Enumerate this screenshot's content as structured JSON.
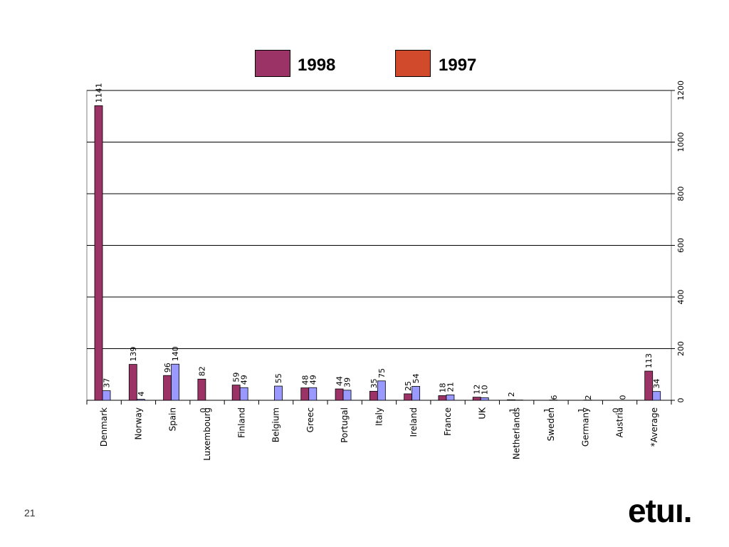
{
  "legend": [
    {
      "label": "1998",
      "color": "#9b3366"
    },
    {
      "label": "1997",
      "color": "#d24a2c"
    }
  ],
  "chart_data": {
    "type": "bar",
    "categories": [
      "Denmark",
      "Norway",
      "Spain",
      "Luxembourg",
      "Finland",
      "Belgium",
      "Greec",
      "Portugal",
      "Italy",
      "Ireland",
      "France",
      "UK",
      "Netherlands",
      "Sweden",
      "Germany",
      "Austria",
      "*Average"
    ],
    "series": [
      {
        "name": "1998",
        "color": "#9b3366",
        "values": [
          1141,
          139,
          96,
          82,
          59,
          null,
          48,
          44,
          35,
          25,
          18,
          12,
          2,
          null,
          null,
          null,
          113
        ],
        "labels": [
          "1141",
          "139",
          "96",
          "82",
          "59",
          "",
          "48",
          "44",
          "35",
          "25",
          "18",
          "12",
          "2",
          "",
          "",
          "",
          "113"
        ]
      },
      {
        "color": "#9999ff",
        "values": [
          37,
          4,
          140,
          0,
          49,
          55,
          49,
          39,
          75,
          54,
          21,
          10,
          1,
          1,
          1,
          0,
          34
        ],
        "labels": [
          "37",
          "4",
          "140",
          "",
          "49",
          "55",
          "49",
          "39",
          "75",
          "54",
          "21",
          "10",
          "",
          "",
          "",
          "",
          "34"
        ]
      }
    ],
    "extra_labels": [
      {
        "category": "Luxembourg",
        "text": "0"
      },
      {
        "category": "Netherlands",
        "text": "1"
      },
      {
        "category": "Sweden",
        "text": "1"
      },
      {
        "category": "Sweden",
        "text": "6"
      },
      {
        "category": "Germany",
        "text": "1"
      },
      {
        "category": "Germany",
        "text": "2"
      },
      {
        "category": "Austria",
        "text": "0"
      },
      {
        "category": "Austria",
        "text": "0"
      }
    ],
    "yticks": [
      0,
      200,
      400,
      600,
      800,
      1000,
      1200
    ],
    "ylim": [
      0,
      1200
    ],
    "y_axis_side": "right",
    "grid": true
  },
  "footer": {
    "slide_number": "21",
    "logo": "etuı."
  }
}
